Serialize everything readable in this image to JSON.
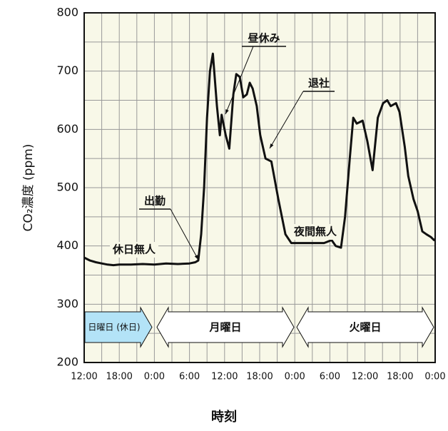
{
  "chart_data": {
    "type": "line",
    "ylabel": "CO₂濃度 (ppm)",
    "xlabel": "時刻",
    "x": [
      0,
      1,
      2,
      3,
      4,
      5,
      6,
      8,
      10,
      12,
      14,
      16,
      18,
      19,
      19.5,
      20,
      20.5,
      21,
      21.5,
      22,
      22.7,
      23.2,
      23.5,
      24.2,
      24.8,
      25.5,
      26,
      26.6,
      27.2,
      27.8,
      28.3,
      28.8,
      29.5,
      30.1,
      31,
      32,
      33.2,
      34.4,
      35.4,
      38,
      41,
      42.3,
      43,
      43.9,
      44.6,
      45.4,
      46,
      46.6,
      47.6,
      48.4,
      49.3,
      50.2,
      51.1,
      51.8,
      52.4,
      53.3,
      53.9,
      54.8,
      55.4,
      56.3,
      57,
      57.8,
      58.5,
      59.3,
      59.8,
      60
    ],
    "values": [
      380,
      375,
      372,
      370,
      368,
      367,
      368,
      368,
      369,
      368,
      370,
      369,
      370,
      372,
      375,
      420,
      500,
      620,
      700,
      730,
      640,
      590,
      625,
      590,
      567,
      660,
      695,
      690,
      655,
      660,
      680,
      670,
      640,
      590,
      550,
      545,
      480,
      420,
      405,
      405,
      405,
      410,
      400,
      397,
      450,
      550,
      620,
      610,
      615,
      580,
      530,
      620,
      645,
      650,
      640,
      645,
      630,
      570,
      520,
      480,
      460,
      425,
      420,
      415,
      410,
      412
    ],
    "color": "#111111",
    "xlim": [
      0,
      60
    ],
    "ylim": [
      200,
      800
    ],
    "xticks": [
      {
        "value": 0,
        "label": "12:00"
      },
      {
        "value": 6,
        "label": "18:00"
      },
      {
        "value": 12,
        "label": "0:00"
      },
      {
        "value": 18,
        "label": "6:00"
      },
      {
        "value": 24,
        "label": "12:00"
      },
      {
        "value": 30,
        "label": "18:00"
      },
      {
        "value": 36,
        "label": "0:00"
      },
      {
        "value": 42,
        "label": "6:00"
      },
      {
        "value": 48,
        "label": "12:00"
      },
      {
        "value": 54,
        "label": "18:00"
      },
      {
        "value": 60,
        "label": "0:00"
      }
    ],
    "yticks": [
      200,
      300,
      400,
      500,
      600,
      700,
      800
    ],
    "grid": true,
    "annotations": [
      "休日無人",
      "出勤",
      "昼休み",
      "退社",
      "夜間無人"
    ],
    "day_labels": [
      "日曜日 (休日)",
      "月曜日",
      "火曜日"
    ]
  }
}
